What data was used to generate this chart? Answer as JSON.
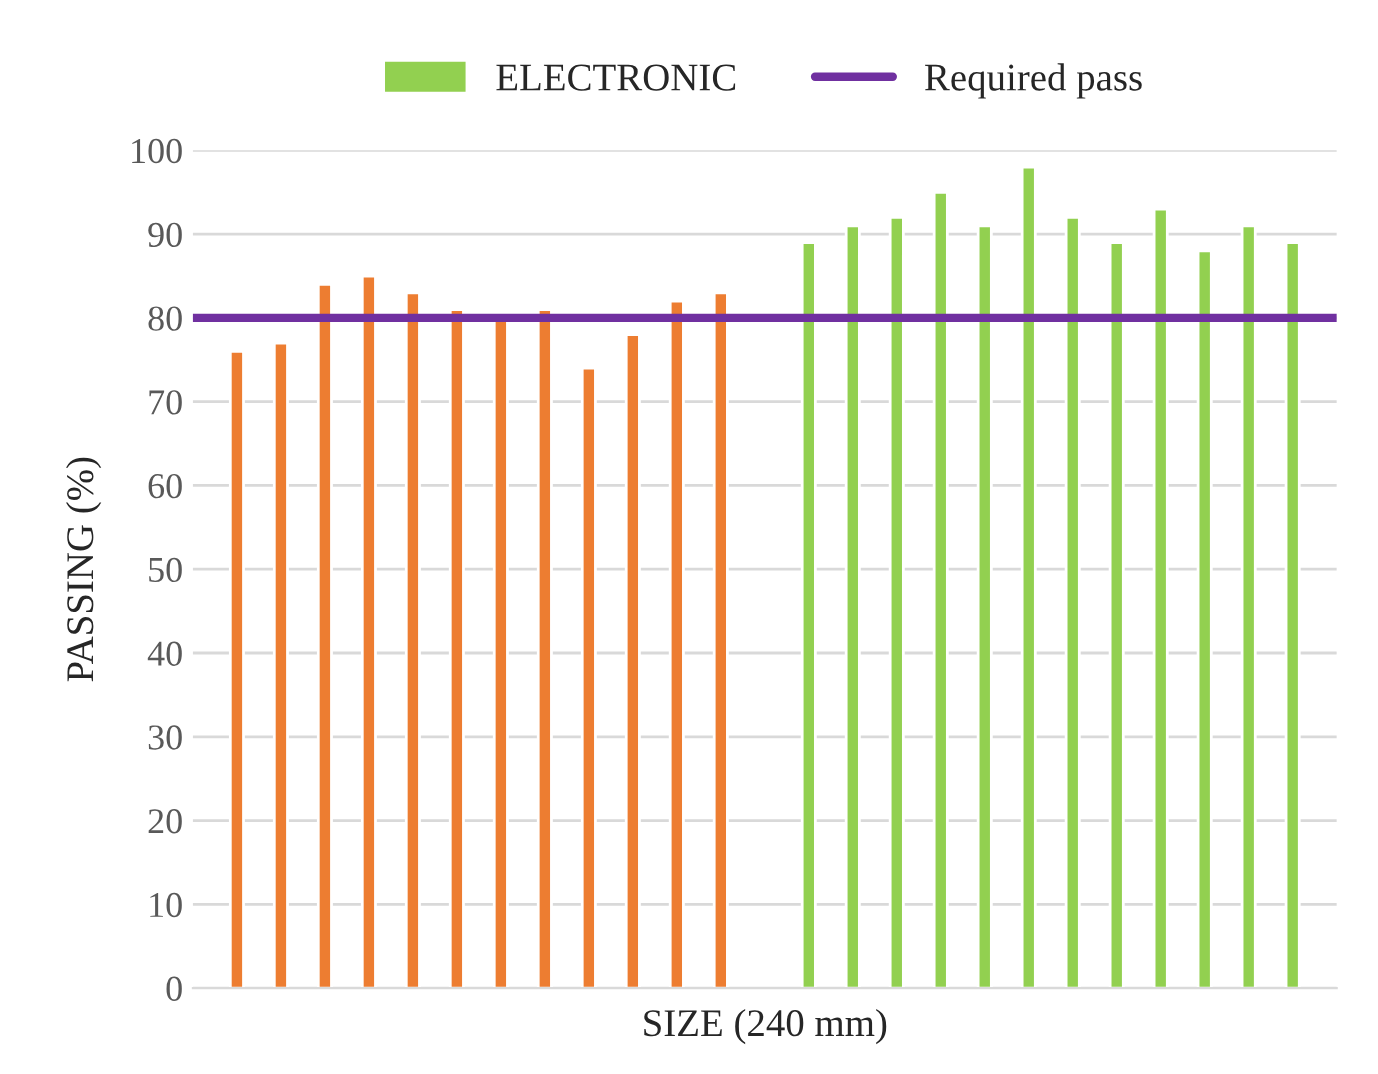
{
  "chart_data": {
    "type": "bar",
    "xlabel": "SIZE (240 mm)",
    "ylabel": "PASSING (%)",
    "categories": [
      null,
      null,
      null,
      null,
      null,
      null,
      null,
      null,
      null,
      null,
      null,
      null,
      null,
      null,
      null,
      null,
      null,
      null,
      null,
      null,
      null,
      null,
      null,
      null,
      null
    ],
    "series": [
      {
        "color": "#ed7d31",
        "values": [
          76,
          77,
          84,
          85,
          83,
          81,
          80,
          81,
          74,
          78,
          82,
          83,
          null,
          null,
          null,
          null,
          null,
          null,
          null,
          null,
          null,
          null,
          null,
          null,
          null
        ]
      },
      {
        "name": "ELECTRONIC",
        "color": "#92d050",
        "values": [
          null,
          null,
          null,
          null,
          null,
          null,
          null,
          null,
          null,
          null,
          null,
          null,
          null,
          89,
          91,
          92,
          95,
          91,
          98,
          92,
          89,
          93,
          88,
          91,
          89
        ]
      }
    ],
    "ref_lines": [
      {
        "axis": "y",
        "value": 80,
        "label": "Required pass",
        "color": "#7030a0"
      }
    ],
    "ylim": [
      0,
      100
    ],
    "yticks": [
      0,
      10,
      20,
      30,
      40,
      50,
      60,
      70,
      80,
      90,
      100
    ],
    "grid": "y",
    "legend": "top"
  }
}
